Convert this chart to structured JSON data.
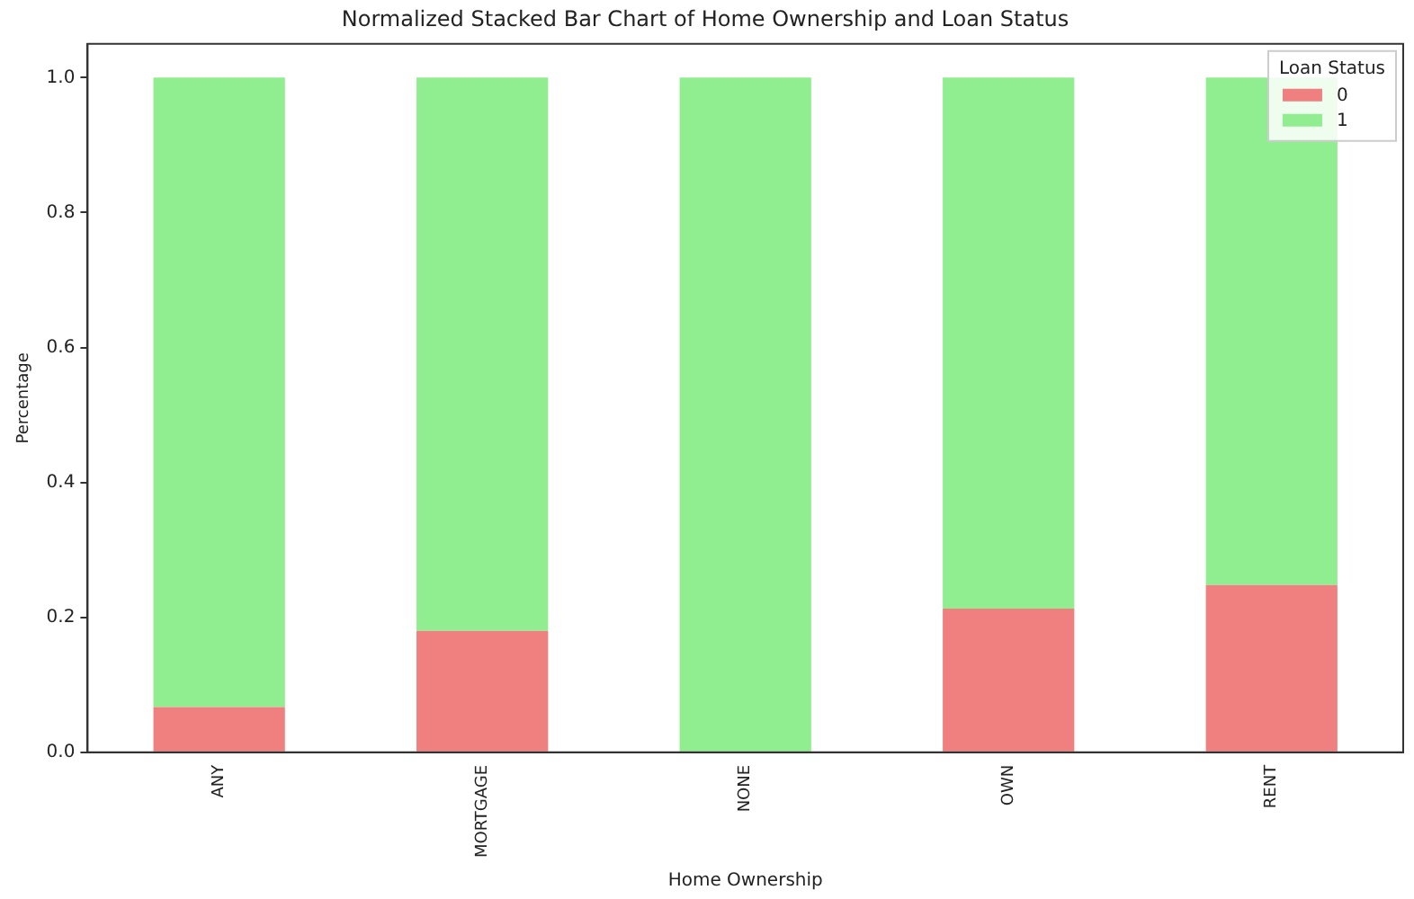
{
  "chart_data": {
    "type": "bar",
    "title": "Normalized Stacked Bar Chart of Home Ownership and Loan Status",
    "xlabel": "Home Ownership",
    "ylabel": "Percentage",
    "legend_title": "Loan Status",
    "categories": [
      "ANY",
      "MORTGAGE",
      "NONE",
      "OWN",
      "RENT"
    ],
    "series": [
      {
        "name": "0",
        "color": "#f08080",
        "values": [
          0.067,
          0.18,
          0,
          0.213,
          0.248
        ]
      },
      {
        "name": "1",
        "color": "#90ee90",
        "values": [
          0.933,
          0.82,
          1,
          0.787,
          0.752
        ]
      }
    ],
    "stacked": true,
    "ylim": [
      0,
      1.05
    ],
    "yticks": [
      {
        "value": 0,
        "label": "0.0"
      },
      {
        "value": 0.2,
        "label": "0.2"
      },
      {
        "value": 0.4,
        "label": "0.4"
      },
      {
        "value": 0.6,
        "label": "0.6"
      },
      {
        "value": 0.8,
        "label": "0.8"
      },
      {
        "value": 1,
        "label": "1.0"
      }
    ],
    "grid": false,
    "legend": "top right"
  }
}
